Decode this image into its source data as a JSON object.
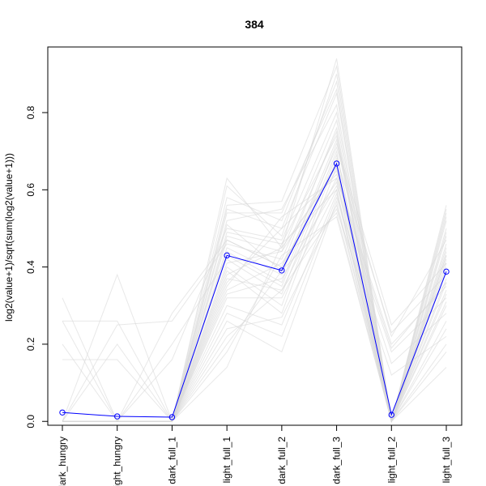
{
  "chart_data": {
    "type": "line",
    "title": "384",
    "xlabel": "",
    "ylabel": "log2(value+1)/sqrt(sum(log2(value+1)))",
    "categories": [
      "dark_hungry",
      "light_hungry",
      "dark_full_1",
      "light_full_1",
      "dark_full_2",
      "dark_full_3",
      "light_full_2",
      "light_full_3"
    ],
    "ylim": [
      -0.01,
      0.97
    ],
    "yticks": [
      0.0,
      0.2,
      0.4,
      0.6,
      0.8
    ],
    "ytick_labels": [
      "0.0",
      "0.2",
      "0.4",
      "0.6",
      "0.8"
    ],
    "grid": false,
    "legend": "none",
    "series": [
      {
        "values": [
          0.023,
          0.013,
          0.011,
          0.43,
          0.391,
          0.668,
          0.017,
          0.388
        ],
        "color": "#0000ff",
        "marker": "open-circle"
      }
    ],
    "background_series_color": "#d9d9d9",
    "background_series": [
      [
        0.0,
        0.0,
        0.0,
        0.63,
        0.45,
        0.94,
        0.0,
        0.56
      ],
      [
        0.0,
        0.0,
        0.0,
        0.61,
        0.48,
        0.9,
        0.0,
        0.54
      ],
      [
        0.0,
        0.0,
        0.0,
        0.58,
        0.52,
        0.88,
        0.0,
        0.52
      ],
      [
        0.32,
        0.0,
        0.0,
        0.55,
        0.5,
        0.85,
        0.0,
        0.5
      ],
      [
        0.0,
        0.38,
        0.0,
        0.52,
        0.55,
        0.82,
        0.0,
        0.48
      ],
      [
        0.0,
        0.0,
        0.16,
        0.5,
        0.47,
        0.8,
        0.0,
        0.46
      ],
      [
        0.26,
        0.0,
        0.0,
        0.48,
        0.44,
        0.78,
        0.0,
        0.45
      ],
      [
        0.0,
        0.0,
        0.28,
        0.47,
        0.4,
        0.76,
        0.0,
        0.44
      ],
      [
        0.0,
        0.25,
        0.26,
        0.46,
        0.42,
        0.75,
        0.0,
        0.43
      ],
      [
        0.2,
        0.0,
        0.0,
        0.45,
        0.38,
        0.73,
        0.0,
        0.42
      ],
      [
        0.0,
        0.0,
        0.0,
        0.44,
        0.36,
        0.72,
        0.25,
        0.41
      ],
      [
        0.16,
        0.16,
        0.0,
        0.43,
        0.35,
        0.7,
        0.0,
        0.4
      ],
      [
        0.0,
        0.0,
        0.2,
        0.42,
        0.33,
        0.69,
        0.0,
        0.39
      ],
      [
        0.0,
        0.0,
        0.0,
        0.4,
        0.3,
        0.68,
        0.23,
        0.38
      ],
      [
        0.0,
        0.2,
        0.0,
        0.39,
        0.28,
        0.66,
        0.0,
        0.37
      ],
      [
        0.0,
        0.0,
        0.0,
        0.38,
        0.45,
        0.65,
        0.0,
        0.36
      ],
      [
        0.0,
        0.0,
        0.0,
        0.36,
        0.5,
        0.64,
        0.2,
        0.35
      ],
      [
        0.26,
        0.26,
        0.0,
        0.35,
        0.53,
        0.63,
        0.0,
        0.34
      ],
      [
        0.0,
        0.0,
        0.0,
        0.34,
        0.41,
        0.62,
        0.0,
        0.33
      ],
      [
        0.0,
        0.0,
        0.0,
        0.33,
        0.37,
        0.61,
        0.18,
        0.32
      ],
      [
        0.0,
        0.0,
        0.0,
        0.32,
        0.32,
        0.6,
        0.0,
        0.31
      ],
      [
        0.0,
        0.0,
        0.0,
        0.3,
        0.25,
        0.59,
        0.0,
        0.3
      ],
      [
        0.0,
        0.0,
        0.0,
        0.28,
        0.22,
        0.58,
        0.15,
        0.28
      ],
      [
        0.0,
        0.0,
        0.0,
        0.26,
        0.18,
        0.57,
        0.0,
        0.26
      ],
      [
        0.0,
        0.0,
        0.0,
        0.24,
        0.27,
        0.56,
        0.0,
        0.24
      ],
      [
        0.0,
        0.0,
        0.0,
        0.22,
        0.34,
        0.55,
        0.12,
        0.22
      ],
      [
        0.0,
        0.0,
        0.0,
        0.2,
        0.39,
        0.54,
        0.0,
        0.2
      ],
      [
        0.0,
        0.0,
        0.0,
        0.18,
        0.43,
        0.53,
        0.0,
        0.18
      ],
      [
        0.0,
        0.0,
        0.0,
        0.14,
        0.46,
        0.6,
        0.0,
        0.14
      ],
      [
        0.0,
        0.0,
        0.0,
        0.54,
        0.54,
        0.86,
        0.0,
        0.55
      ],
      [
        0.0,
        0.0,
        0.0,
        0.56,
        0.57,
        0.92,
        0.0,
        0.53
      ],
      [
        0.0,
        0.0,
        0.0,
        0.51,
        0.39,
        0.71,
        0.22,
        0.47
      ],
      [
        0.0,
        0.0,
        0.0,
        0.49,
        0.46,
        0.74,
        0.0,
        0.49
      ],
      [
        0.0,
        0.0,
        0.0,
        0.47,
        0.4,
        0.67,
        0.0,
        0.41
      ],
      [
        0.0,
        0.0,
        0.0,
        0.37,
        0.34,
        0.63,
        0.19,
        0.36
      ],
      [
        0.0,
        0.0,
        0.0,
        0.41,
        0.44,
        0.66,
        0.0,
        0.43
      ]
    ]
  }
}
